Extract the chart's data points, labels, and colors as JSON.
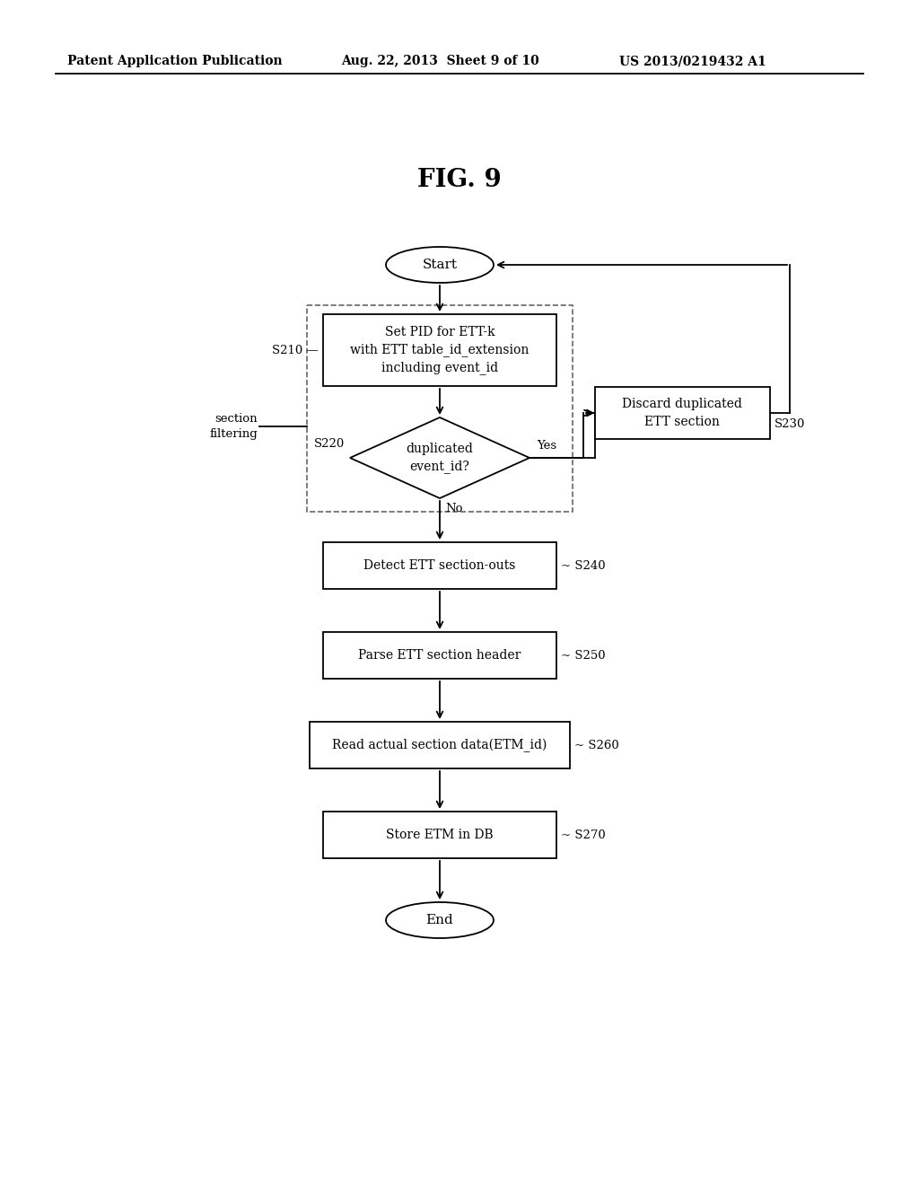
{
  "bg_color": "#ffffff",
  "text_color": "#000000",
  "header_left": "Patent Application Publication",
  "header_mid": "Aug. 22, 2013  Sheet 9 of 10",
  "header_right": "US 2013/0219432 A1",
  "figure_title": "FIG. 9",
  "line_color": "#000000",
  "dash_color": "#666666"
}
